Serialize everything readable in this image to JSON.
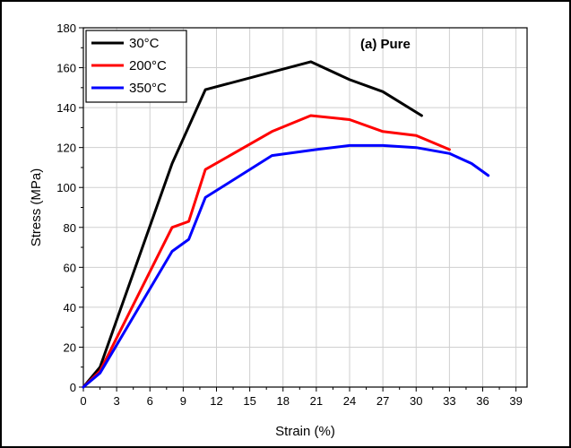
{
  "chart_data": {
    "type": "line",
    "annotation": "(a) Pure",
    "xlabel": "Strain (%)",
    "ylabel": "Stress (MPa)",
    "xlim": [
      0,
      40
    ],
    "ylim": [
      0,
      180
    ],
    "xticks": [
      0,
      3,
      6,
      9,
      12,
      15,
      18,
      21,
      24,
      27,
      30,
      33,
      36,
      39
    ],
    "yticks": [
      0,
      20,
      40,
      60,
      80,
      100,
      120,
      140,
      160,
      180
    ],
    "grid": true,
    "legend_position": "top-left",
    "series": [
      {
        "name": "30°C",
        "color": "#000000",
        "x": [
          0,
          1.5,
          8,
          11,
          20.5,
          24,
          27,
          30.5
        ],
        "y": [
          0,
          10,
          112,
          149,
          163,
          154,
          148,
          136
        ]
      },
      {
        "name": "200°C",
        "color": "#ff0000",
        "x": [
          0,
          1.5,
          8,
          9.5,
          11,
          17,
          20.5,
          24,
          27,
          30,
          33
        ],
        "y": [
          0,
          8,
          80,
          83,
          109,
          128,
          136,
          134,
          128,
          126,
          119
        ]
      },
      {
        "name": "350°C",
        "color": "#0000ff",
        "x": [
          0,
          1.5,
          8,
          9.5,
          11,
          17,
          21,
          24,
          27,
          30,
          33,
          35,
          36.5
        ],
        "y": [
          0,
          7,
          68,
          74,
          95,
          116,
          119,
          121,
          121,
          120,
          117,
          112,
          106
        ]
      }
    ]
  }
}
